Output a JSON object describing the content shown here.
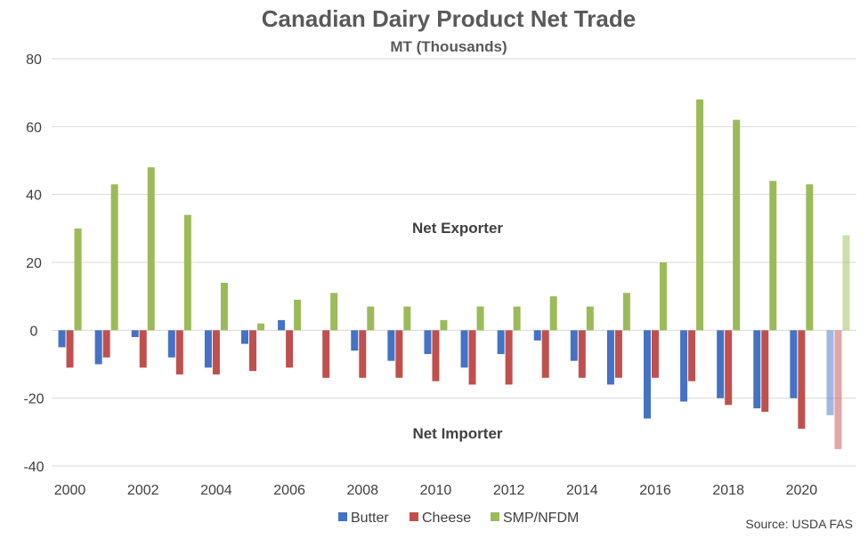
{
  "chart_data": {
    "type": "bar",
    "title": "Canadian Dairy Product Net Trade",
    "subtitle": "MT (Thousands)",
    "source": "Source: USDA FAS",
    "xlabel": "",
    "ylabel": "",
    "ylim": [
      -40,
      80
    ],
    "yticks": [
      -40,
      -20,
      0,
      20,
      40,
      60,
      80
    ],
    "grid": true,
    "legend_position": "bottom",
    "categories": [
      2000,
      2001,
      2002,
      2003,
      2004,
      2005,
      2006,
      2007,
      2008,
      2009,
      2010,
      2011,
      2012,
      2013,
      2014,
      2015,
      2016,
      2017,
      2018,
      2019,
      2020,
      2021
    ],
    "x_tick_labels": [
      2000,
      2002,
      2004,
      2006,
      2008,
      2010,
      2012,
      2014,
      2016,
      2018,
      2020
    ],
    "series": [
      {
        "name": "Butter",
        "color": "#4472c4",
        "values": [
          -5,
          -10,
          -2,
          -8,
          -11,
          -4,
          3,
          0,
          -6,
          -9,
          -7,
          -11,
          -7,
          -3,
          -9,
          -16,
          -26,
          -21,
          -20,
          -23,
          -20,
          -25
        ]
      },
      {
        "name": "Cheese",
        "color": "#c0504d",
        "values": [
          -11,
          -8,
          -11,
          -13,
          -13,
          -12,
          -11,
          -14,
          -14,
          -14,
          -15,
          -16,
          -16,
          -14,
          -14,
          -14,
          -14,
          -15,
          -22,
          -24,
          -29,
          -35
        ]
      },
      {
        "name": "SMP/NFDM",
        "color": "#9bbb59",
        "values": [
          30,
          43,
          48,
          34,
          14,
          2,
          9,
          11,
          7,
          7,
          3,
          7,
          7,
          10,
          7,
          11,
          20,
          68,
          62,
          44,
          43,
          28
        ]
      }
    ],
    "annotations": {
      "exporter": "Net Exporter",
      "importer": "Net Importer"
    }
  }
}
